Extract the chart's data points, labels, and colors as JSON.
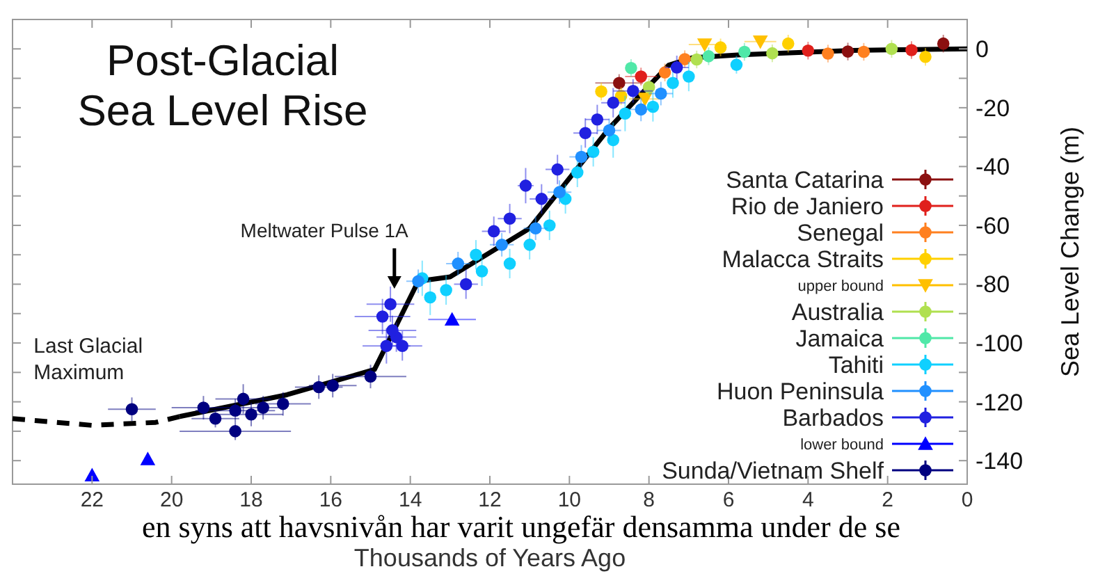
{
  "chart_data": {
    "type": "scatter",
    "title": "Post-Glacial Sea Level Rise",
    "xlabel": "Thousands of Years Ago",
    "ylabel": "Sea Level Change (m)",
    "xlim": [
      24,
      0
    ],
    "xticks": [
      22,
      20,
      18,
      16,
      14,
      12,
      10,
      8,
      6,
      4,
      2,
      0
    ],
    "ylim": [
      -148,
      10
    ],
    "yticks": [
      0,
      {
        "value": -10,
        "label": null
      },
      -20,
      {
        "value": -30,
        "label": null
      },
      -40,
      {
        "value": -50,
        "label": null
      },
      -60,
      {
        "value": -70,
        "label": null
      },
      -80,
      {
        "value": -90,
        "label": null
      },
      -100,
      {
        "value": -110,
        "label": null
      },
      -120,
      {
        "value": -130,
        "label": null
      },
      -140
    ],
    "legend": "bottom right",
    "annotations": [
      {
        "text": "Meltwater Pulse 1A",
        "x": 14.4,
        "y": -82
      },
      {
        "text": "Last Glacial Maximum",
        "x": 22,
        "y": -128
      },
      "en syns att havsnivån har varit ungefär densamma under de se"
    ],
    "series": [
      {
        "name": "Santa Catarina",
        "color": "#8b1010",
        "marker": "circle",
        "x": [
          8.75,
          3.0,
          0.6
        ],
        "values": [
          -11.6,
          -0.9,
          1.8
        ],
        "errors": [
          3,
          3,
          3
        ],
        "xerrors": [
          0.6,
          null,
          null
        ]
      },
      {
        "name": "Rio de Janiero",
        "color": "#e0201c",
        "marker": "circle",
        "x": [
          8.2,
          4.0,
          1.4
        ],
        "values": [
          -9.4,
          -0.6,
          -0.4
        ],
        "errors": [
          3,
          3,
          3
        ],
        "xerrors": [
          0.4,
          null,
          null
        ]
      },
      {
        "name": "Senegal",
        "color": "#ff8020",
        "marker": "circle",
        "x": [
          7.6,
          7.1,
          3.5,
          2.6
        ],
        "values": [
          -8,
          -3.5,
          -1.6,
          -1
        ],
        "errors": [
          3,
          3,
          3,
          3
        ]
      },
      {
        "name": "Malacca Straits",
        "color": "#ffd000",
        "marker": "circle",
        "x": [
          9.2,
          8.7,
          6.2,
          4.5,
          1.05
        ],
        "values": [
          -14.5,
          -16,
          0.5,
          1.8,
          -2.7
        ],
        "errors": [
          3,
          3,
          3,
          3,
          3
        ]
      },
      {
        "name": "upper bound",
        "color": "#ffc000",
        "marker": "triangle-down",
        "x": [
          8.1,
          6.6,
          5.2
        ],
        "values": [
          -17,
          1.5,
          2.5
        ],
        "xerrors": [
          0.4,
          0.4,
          0.4
        ]
      },
      {
        "name": "Australia",
        "color": "#b0e050",
        "marker": "circle",
        "x": [
          8.0,
          6.8,
          4.9,
          1.9
        ],
        "values": [
          -13,
          -3.6,
          -1.5,
          0
        ],
        "errors": [
          3,
          3,
          3,
          3
        ]
      },
      {
        "name": "Jamaica",
        "color": "#50e8a8",
        "marker": "circle",
        "x": [
          8.45,
          6.5,
          5.6
        ],
        "values": [
          -6.5,
          -2.5,
          -1
        ],
        "errors": [
          3,
          3,
          3
        ]
      },
      {
        "name": "Tahiti",
        "color": "#10d0ff",
        "marker": "circle",
        "x": [
          13.7,
          13.5,
          13.1,
          12.35,
          12.2,
          11.5,
          11.0,
          10.5,
          10.1,
          9.8,
          9.4,
          8.9,
          8.6,
          7.9,
          7.4,
          7.0,
          5.8
        ],
        "values": [
          -78,
          -84.5,
          -82,
          -70,
          -75.6,
          -73,
          -66.6,
          -60,
          -51,
          -42,
          -35,
          -31,
          -22,
          -19.7,
          -11.6,
          -9.4,
          -5.4
        ],
        "errors": [
          6,
          6,
          5,
          5,
          5,
          5,
          5,
          5,
          5,
          5,
          5,
          6,
          6,
          5,
          5,
          5,
          3
        ]
      },
      {
        "name": "Huon Peninsula",
        "color": "#2090ff",
        "marker": "circle",
        "x": [
          13.8,
          12.8,
          11.7,
          10.85,
          10.25,
          9.7,
          9.0,
          8.2,
          7.7
        ],
        "values": [
          -79,
          -73,
          -66.6,
          -61,
          -48.7,
          -36.7,
          -27.7,
          -20.6,
          -15.2
        ],
        "errors": [
          4,
          4,
          4,
          4,
          4,
          4,
          4,
          4,
          4
        ],
        "xerrors": [
          0.3,
          0.3,
          0.3,
          0.3,
          0.3,
          0.3,
          0.3,
          0.3,
          0.3
        ]
      },
      {
        "name": "Barbados",
        "color": "#2020e0",
        "marker": "circle",
        "x": [
          14.7,
          14.6,
          14.35,
          14.45,
          14.2,
          14.5,
          12.6,
          11.9,
          11.5,
          11.1,
          10.7,
          10.3,
          9.6,
          9.3,
          8.9,
          8.4,
          7.3
        ],
        "values": [
          -91,
          -101,
          -98,
          -95.7,
          -101,
          -86.8,
          -80,
          -62,
          -57.7,
          -46.5,
          -51,
          -41,
          -28.6,
          -24,
          -18.3,
          -14.3,
          -6.3
        ],
        "errors": [
          6,
          6,
          5,
          5,
          5,
          6,
          5,
          5,
          5,
          6,
          5,
          5,
          5,
          5,
          5,
          4,
          4
        ],
        "xerrors": [
          0.7,
          0.6,
          0.5,
          0.6,
          0.5,
          0.6,
          0.3,
          0.3,
          0.3,
          0.2,
          0.3,
          0.3,
          0.3,
          0.3,
          0.3,
          0.5,
          0.3
        ]
      },
      {
        "name": "lower bound",
        "color": "#0000ff",
        "marker": "triangle",
        "x": [
          22.0,
          20.6,
          12.95
        ],
        "values": [
          -145,
          -139.5,
          -92
        ],
        "xerrors": [
          null,
          null,
          0.6
        ]
      },
      {
        "name": "Sunda/Vietnam Shelf",
        "color": "#000080",
        "marker": "circle",
        "x": [
          21.0,
          19.2,
          18.9,
          18.4,
          18.4,
          18.2,
          18.0,
          17.7,
          17.2,
          16.3,
          15.95,
          15.0
        ],
        "values": [
          -122.5,
          -122,
          -125.7,
          -123,
          -130,
          -119,
          -124.3,
          -122,
          -120.7,
          -115,
          -114.5,
          -111.4
        ],
        "errors": [
          4,
          4,
          3,
          4,
          3,
          5,
          4,
          4,
          4,
          4,
          4,
          4
        ],
        "xerrors": [
          0.6,
          0.8,
          0.6,
          1.0,
          1.4,
          0.7,
          0.8,
          0.6,
          0.7,
          0.6,
          0.6,
          0.9
        ]
      },
      {
        "type": "line",
        "color": "#000000",
        "line_style": "dashed",
        "x": [
          24,
          22,
          20.4,
          19.8
        ],
        "values": [
          -125.7,
          -128,
          -127,
          -125
        ]
      },
      {
        "type": "line",
        "color": "#000000",
        "line_style": "solid",
        "x": [
          19.8,
          17.1,
          14.9,
          13.8,
          13.0,
          11.0,
          9.0,
          8.1,
          7.5,
          6.9,
          5.7,
          2.9,
          0
        ],
        "values": [
          -125,
          -117.6,
          -109,
          -79,
          -77.5,
          -61,
          -27,
          -14,
          -5.5,
          -3,
          -2,
          -0.5,
          0
        ]
      }
    ]
  }
}
